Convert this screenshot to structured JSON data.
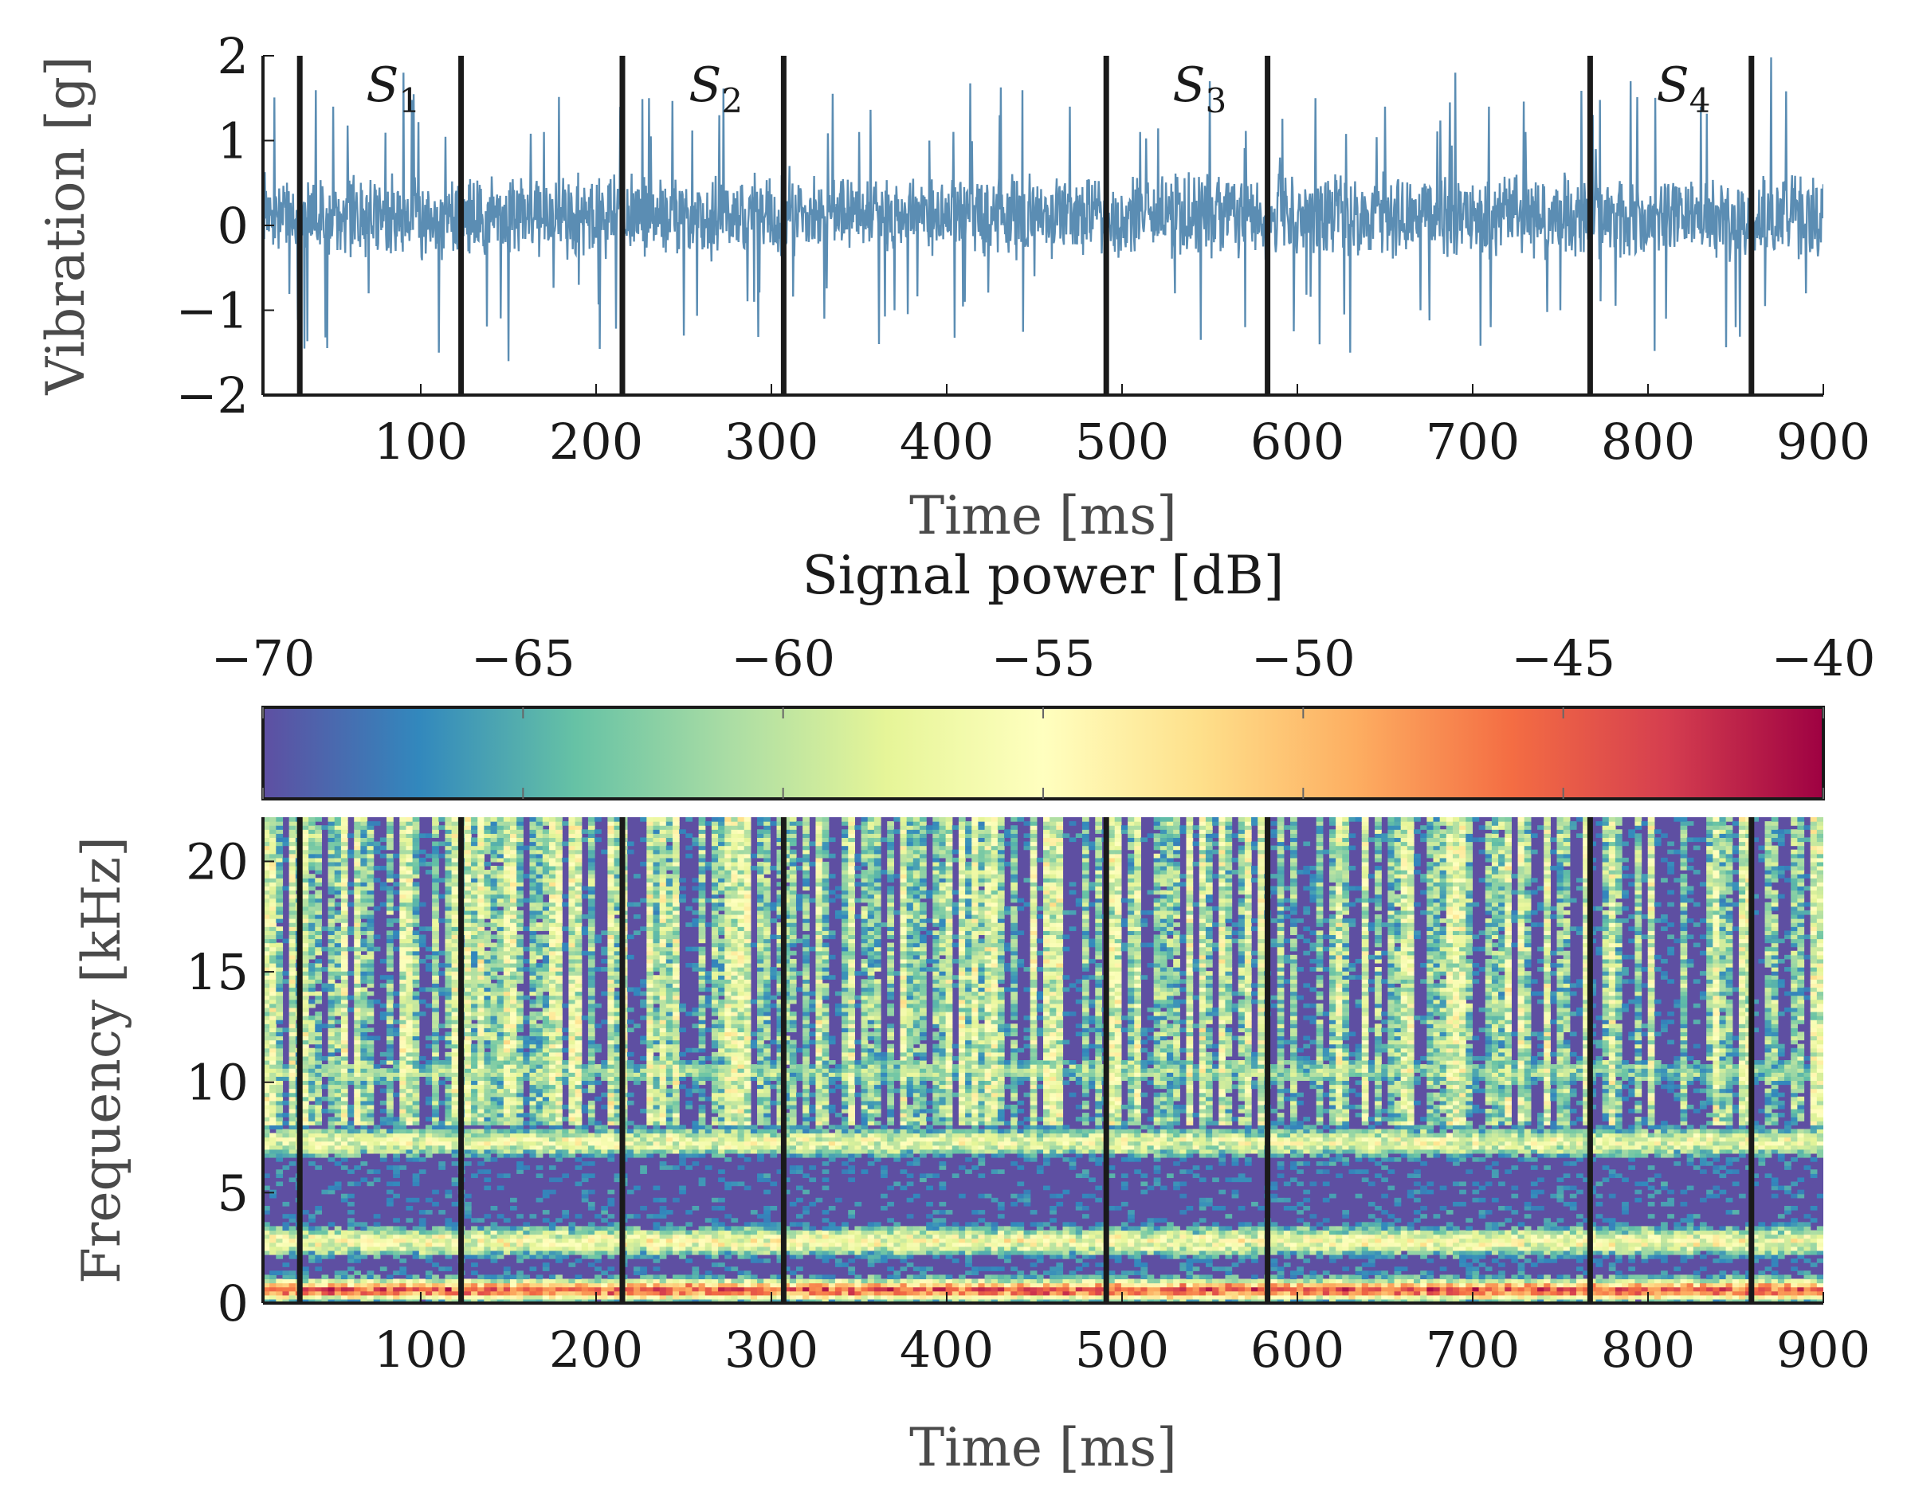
{
  "chart_data": [
    {
      "type": "line",
      "title": "",
      "xlabel": "Time [ms]",
      "ylabel": "Vibration [g]",
      "xlim": [
        10,
        900
      ],
      "ylim": [
        -2,
        2
      ],
      "xticks": [
        100,
        200,
        300,
        400,
        500,
        600,
        700,
        800,
        900
      ],
      "xtick_labels": [
        "100",
        "200",
        "300",
        "400",
        "500",
        "600",
        "700",
        "800",
        "900"
      ],
      "yticks": [
        -2,
        -1,
        0,
        1,
        2
      ],
      "ytick_labels": [
        "−2",
        "−1",
        "0",
        "1",
        "2"
      ],
      "series_color": "#5b8db3",
      "series": [
        {
          "name": "vibration",
          "description_values": "noisy signal centered at 0, typical amplitude ±0.5 g, peaks up to about ±1.8 g",
          "x": [
            10,
            30,
            50,
            70,
            90,
            110,
            130,
            150,
            170,
            190,
            210,
            230,
            250,
            270,
            290,
            310,
            330,
            350,
            370,
            390,
            410,
            430,
            450,
            470,
            490,
            510,
            530,
            550,
            570,
            590,
            610,
            630,
            650,
            670,
            690,
            710,
            730,
            750,
            770,
            790,
            810,
            830,
            850,
            870,
            890
          ],
          "y": [
            0.3,
            -1.0,
            1.3,
            -0.9,
            1.7,
            -1.6,
            0.4,
            -1.7,
            1.0,
            -0.8,
            0.5,
            1.4,
            -1.4,
            1.2,
            -1.0,
            0.6,
            -1.2,
            1.0,
            -1.1,
            0.9,
            -1.0,
            1.2,
            -0.7,
            1.3,
            -1.2,
            1.0,
            -0.9,
            1.6,
            -1.3,
            0.7,
            1.4,
            -1.6,
            1.3,
            -1.1,
            1.7,
            -1.3,
            1.0,
            -1.1,
            0.8,
            1.6,
            -1.2,
            1.3,
            -1.3,
            1.9,
            -0.9
          ]
        }
      ],
      "boundaries_ms": [
        31,
        123,
        215,
        307,
        491,
        583,
        767,
        859
      ],
      "segments": [
        {
          "label": "S",
          "sub": "1",
          "x": 77
        },
        {
          "label": "S",
          "sub": "2",
          "x": 261
        },
        {
          "label": "S",
          "sub": "3",
          "x": 537
        },
        {
          "label": "S",
          "sub": "4",
          "x": 813
        }
      ],
      "seed": 7
    },
    {
      "type": "heatmap",
      "title": "",
      "xlabel": "Time [ms]",
      "ylabel": "Frequency [kHz]",
      "xlim": [
        10,
        900
      ],
      "ylim": [
        0,
        22
      ],
      "xticks": [
        100,
        200,
        300,
        400,
        500,
        600,
        700,
        800,
        900
      ],
      "xtick_labels": [
        "100",
        "200",
        "300",
        "400",
        "500",
        "600",
        "700",
        "800",
        "900"
      ],
      "yticks": [
        0,
        5,
        10,
        15,
        20
      ],
      "ytick_labels": [
        "0",
        "5",
        "10",
        "15",
        "20"
      ],
      "colorbar": {
        "label": "Signal power [dB]",
        "range": [
          -70,
          -40
        ],
        "ticks": [
          -70,
          -65,
          -60,
          -55,
          -50,
          -45,
          -40
        ],
        "tick_labels": [
          "−70",
          "−65",
          "−60",
          "−55",
          "−50",
          "−45",
          "−40"
        ],
        "colormap": [
          "#5e4fa2",
          "#3288bd",
          "#66c2a5",
          "#abdda4",
          "#e6f598",
          "#ffffbf",
          "#fee08b",
          "#fdae61",
          "#f46d43",
          "#d53e4f",
          "#9e0142"
        ]
      },
      "bands_khz": [
        {
          "center": 0.6,
          "level": -45
        },
        {
          "center": 2.8,
          "level": -56
        },
        {
          "center": 7.3,
          "level": -57
        },
        {
          "center": 10.5,
          "level": -62
        }
      ],
      "background_db": -70,
      "boundaries_ms": [
        31,
        123,
        215,
        307,
        491,
        583,
        767,
        859
      ],
      "seed": 11
    }
  ]
}
